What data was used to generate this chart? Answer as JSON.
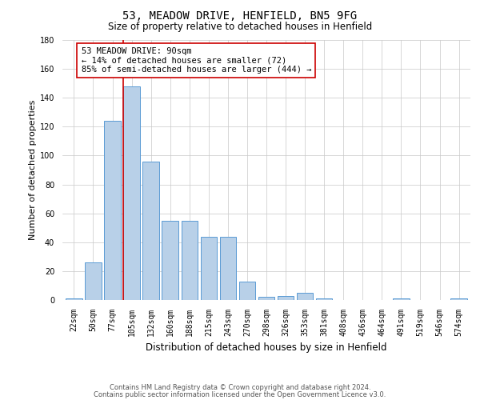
{
  "title": "53, MEADOW DRIVE, HENFIELD, BN5 9FG",
  "subtitle": "Size of property relative to detached houses in Henfield",
  "xlabel": "Distribution of detached houses by size in Henfield",
  "ylabel": "Number of detached properties",
  "bar_labels": [
    "22sqm",
    "50sqm",
    "77sqm",
    "105sqm",
    "132sqm",
    "160sqm",
    "188sqm",
    "215sqm",
    "243sqm",
    "270sqm",
    "298sqm",
    "326sqm",
    "353sqm",
    "381sqm",
    "408sqm",
    "436sqm",
    "464sqm",
    "491sqm",
    "519sqm",
    "546sqm",
    "574sqm"
  ],
  "bar_values": [
    1,
    26,
    124,
    148,
    96,
    55,
    55,
    44,
    44,
    13,
    2,
    3,
    5,
    1,
    0,
    0,
    0,
    1,
    0,
    0,
    1
  ],
  "bar_color": "#b8d0e8",
  "bar_edge_color": "#5b9bd5",
  "vline_x": 2.55,
  "vline_color": "#cc0000",
  "annotation_text": "53 MEADOW DRIVE: 90sqm\n← 14% of detached houses are smaller (72)\n85% of semi-detached houses are larger (444) →",
  "annotation_box_color": "#ffffff",
  "annotation_box_edge": "#cc0000",
  "ylim": [
    0,
    180
  ],
  "yticks": [
    0,
    20,
    40,
    60,
    80,
    100,
    120,
    140,
    160,
    180
  ],
  "footer_line1": "Contains HM Land Registry data © Crown copyright and database right 2024.",
  "footer_line2": "Contains public sector information licensed under the Open Government Licence v3.0.",
  "bg_color": "#ffffff",
  "grid_color": "#c8c8c8",
  "title_fontsize": 10,
  "subtitle_fontsize": 8.5,
  "ylabel_fontsize": 8,
  "xlabel_fontsize": 8.5,
  "tick_fontsize": 7,
  "footer_fontsize": 6,
  "annot_fontsize": 7.5
}
